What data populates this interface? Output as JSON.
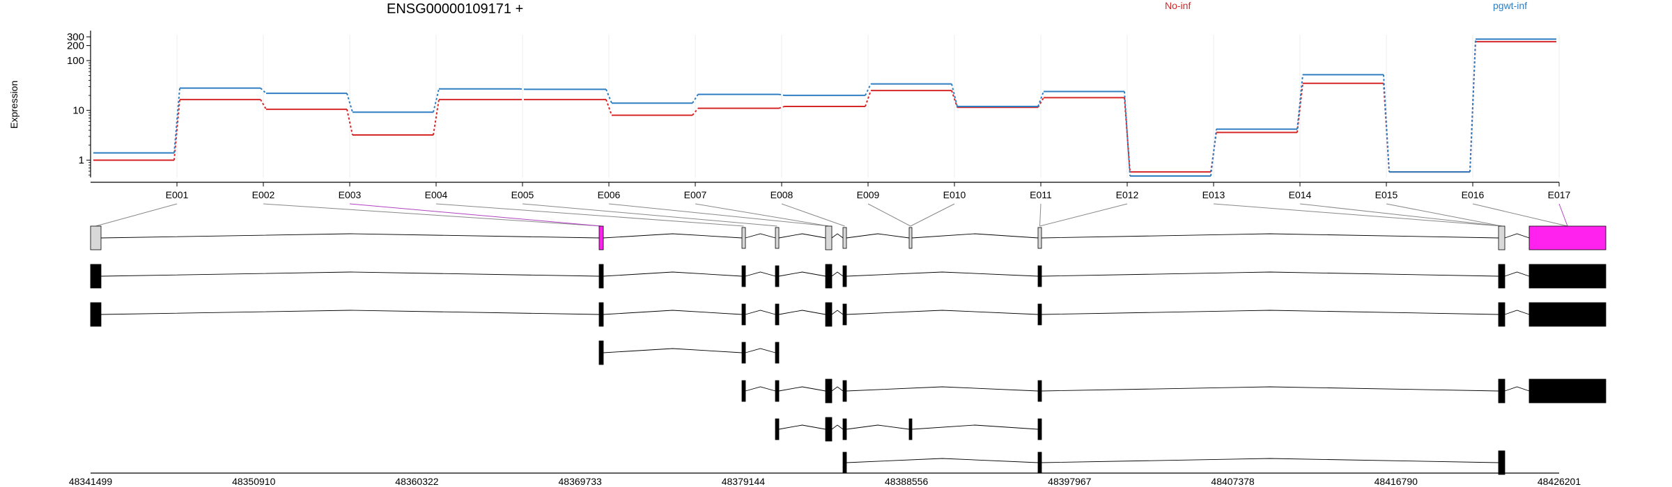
{
  "chart_data": {
    "type": "line",
    "title": "ENSG00000109171 +",
    "ylabel": "Expression",
    "yscale": "log",
    "ylim": [
      0.45,
      330
    ],
    "yticks": [
      1,
      10,
      100,
      200,
      300
    ],
    "ytick_labels": [
      "1",
      "10",
      "100",
      "200",
      "300"
    ],
    "categories": [
      "E001",
      "E002",
      "E003",
      "E004",
      "E005",
      "E006",
      "E007",
      "E008",
      "E009",
      "E010",
      "E011",
      "E012",
      "E013",
      "E014",
      "E015",
      "E016",
      "E017"
    ],
    "series": [
      {
        "name": "No-inf",
        "color": "#d62728",
        "values": [
          1.0,
          16.5,
          10.5,
          3.2,
          16.5,
          16.5,
          8.0,
          11.0,
          12.0,
          25.0,
          11.5,
          18.0,
          0.58,
          3.6,
          35.0,
          0.58,
          240
        ]
      },
      {
        "name": "pgwt-inf",
        "color": "#2f7ec2",
        "values": [
          1.4,
          28.0,
          22.0,
          9.2,
          27.0,
          26.5,
          14.0,
          21.0,
          20.0,
          34.0,
          12.0,
          24.0,
          0.48,
          4.2,
          52.0,
          0.58,
          270
        ]
      }
    ],
    "genomic_axis": {
      "ticks": [
        "48341499",
        "48350910",
        "48360322",
        "48369733",
        "48379144",
        "48388556",
        "48397967",
        "48407378",
        "48416790",
        "48426201"
      ]
    },
    "exon_model": {
      "highlight_color": "#ff22ee",
      "highlighted_exons": [
        "E003",
        "E017"
      ]
    }
  }
}
